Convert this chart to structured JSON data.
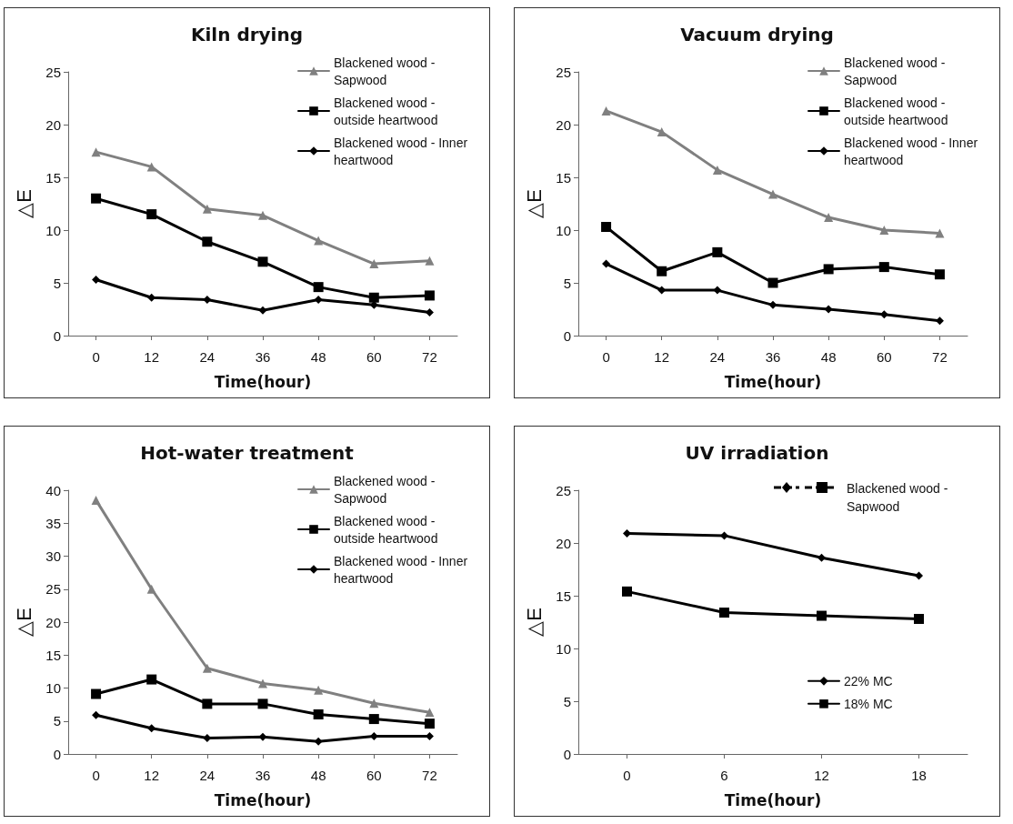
{
  "chart_data": [
    {
      "type": "line",
      "title": "Kiln drying",
      "xlabel": "Time(hour)",
      "ylabel": "△E",
      "categories": [
        "0",
        "12",
        "24",
        "36",
        "48",
        "60",
        "72"
      ],
      "ylim": [
        0,
        25
      ],
      "yticks": [
        0,
        5,
        10,
        15,
        20,
        25
      ],
      "grid": false,
      "legend": "top right",
      "series": [
        {
          "name": "Blackened wood - Sapwood",
          "color": "#808080",
          "marker": "triangle",
          "values": [
            17.4,
            16,
            12,
            11.4,
            9,
            6.8,
            7.1
          ]
        },
        {
          "name": "Blackened wood - outside heartwood",
          "color": "#000000",
          "marker": "square",
          "values": [
            13,
            11.5,
            8.9,
            7,
            4.6,
            3.6,
            3.8
          ]
        },
        {
          "name": "Blackened wood - Inner heartwood",
          "color": "#000000",
          "marker": "diamond",
          "values": [
            5.3,
            3.6,
            3.4,
            2.4,
            3.4,
            2.9,
            2.2
          ]
        }
      ]
    },
    {
      "type": "line",
      "title": "Vacuum drying",
      "xlabel": "Time(hour)",
      "ylabel": "△E",
      "categories": [
        "0",
        "12",
        "24",
        "36",
        "48",
        "60",
        "72"
      ],
      "ylim": [
        0,
        25
      ],
      "yticks": [
        0,
        5,
        10,
        15,
        20,
        25
      ],
      "grid": false,
      "legend": "top right",
      "series": [
        {
          "name": "Blackened wood - Sapwood",
          "color": "#808080",
          "marker": "triangle",
          "values": [
            21.3,
            19.3,
            15.7,
            13.4,
            11.2,
            10,
            9.7
          ]
        },
        {
          "name": "Blackened wood - outside heartwood",
          "color": "#000000",
          "marker": "square",
          "values": [
            10.3,
            6.1,
            7.9,
            5,
            6.3,
            6.5,
            5.8
          ]
        },
        {
          "name": "Blackened wood - Inner heartwood",
          "color": "#000000",
          "marker": "diamond",
          "values": [
            6.8,
            4.3,
            4.3,
            2.9,
            2.5,
            2,
            1.4
          ]
        }
      ]
    },
    {
      "type": "line",
      "title": "Hot-water treatment",
      "xlabel": "Time(hour)",
      "ylabel": "△E",
      "categories": [
        "0",
        "12",
        "24",
        "36",
        "48",
        "60",
        "72"
      ],
      "ylim": [
        0,
        40
      ],
      "yticks": [
        0,
        5,
        10,
        15,
        20,
        25,
        30,
        35,
        40
      ],
      "grid": false,
      "legend": "top right",
      "series": [
        {
          "name": "Blackened wood - Sapwood",
          "color": "#808080",
          "marker": "triangle",
          "values": [
            38.5,
            25,
            13,
            10.7,
            9.7,
            7.7,
            6.3
          ]
        },
        {
          "name": "Blackened wood - outside heartwood",
          "color": "#000000",
          "marker": "square",
          "values": [
            9.1,
            11.3,
            7.6,
            7.6,
            6,
            5.3,
            4.6
          ]
        },
        {
          "name": "Blackened wood - Inner heartwood",
          "color": "#000000",
          "marker": "diamond",
          "values": [
            5.9,
            3.9,
            2.4,
            2.6,
            1.9,
            2.7,
            2.7
          ]
        }
      ]
    },
    {
      "type": "line",
      "title": "UV irradiation",
      "xlabel": "Time(hour)",
      "ylabel": "△E",
      "legend_title": "Blackened wood - Sapwood",
      "categories": [
        "0",
        "6",
        "12",
        "18"
      ],
      "ylim": [
        0,
        25
      ],
      "yticks": [
        0,
        5,
        10,
        15,
        20,
        25
      ],
      "grid": false,
      "legend": "right",
      "series": [
        {
          "name": "22% MC",
          "color": "#000000",
          "marker": "diamond",
          "values": [
            20.9,
            20.7,
            18.6,
            16.9
          ]
        },
        {
          "name": "18% MC",
          "color": "#000000",
          "marker": "square",
          "values": [
            15.4,
            13.4,
            13.1,
            12.8
          ]
        }
      ]
    }
  ]
}
